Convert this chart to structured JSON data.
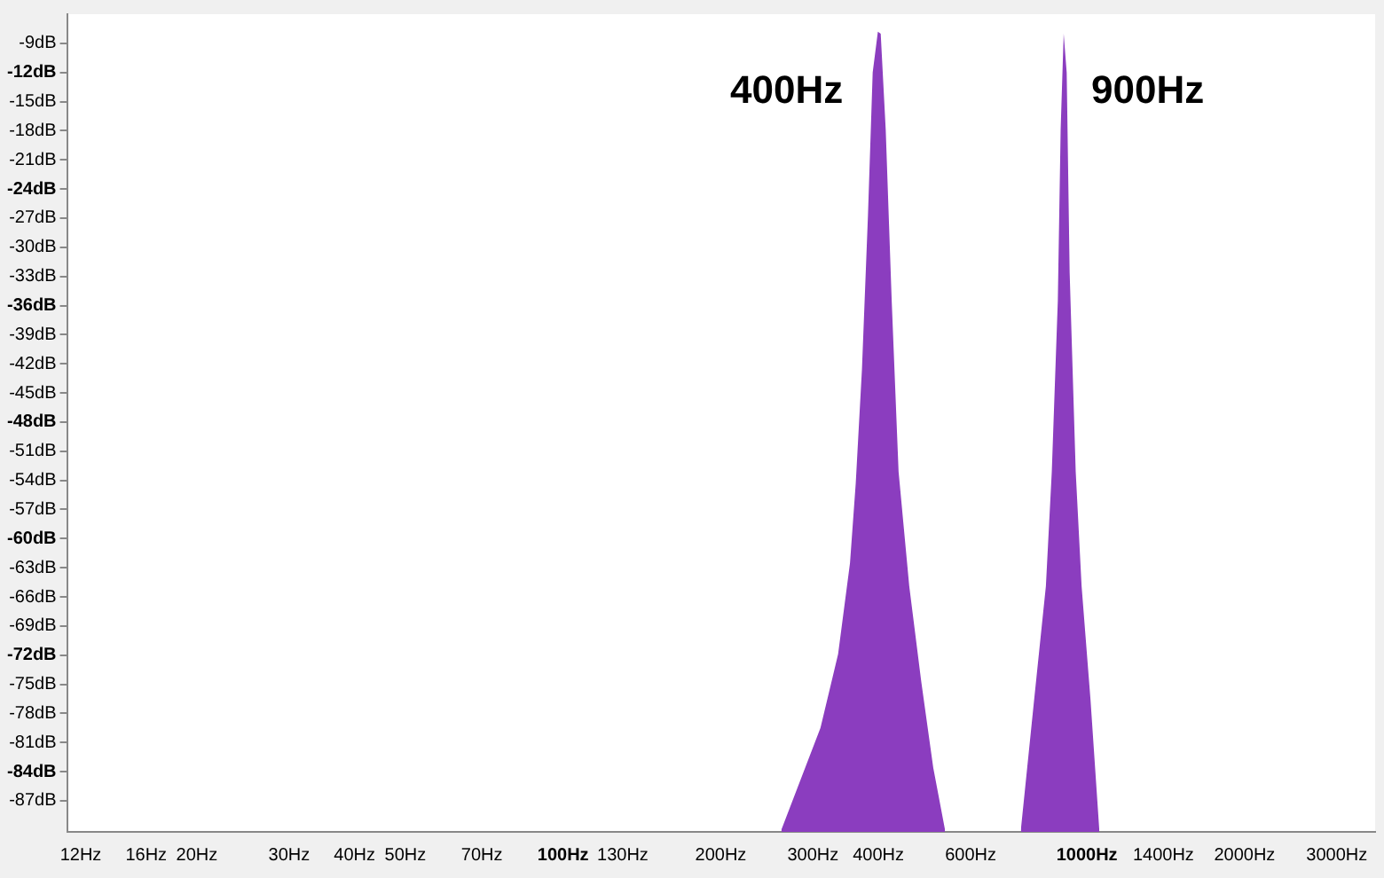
{
  "chart_data": {
    "type": "area",
    "log": "x",
    "x": [
      261,
      310,
      335,
      353,
      362,
      372,
      382,
      390,
      399,
      404,
      413,
      424,
      437,
      458,
      483,
      509,
      536,
      600,
      748,
      793,
      835,
      857,
      880,
      891,
      903,
      915,
      927,
      952,
      977,
      1016,
      1056
    ],
    "series": [
      {
        "color": "#8b3dbf",
        "values": [
          -90,
          -79.5,
          -71.9,
          -62.5,
          -54.3,
          -42.6,
          -26.7,
          -12,
          -7.8,
          -8,
          -17.9,
          -35.5,
          -53.1,
          -64.9,
          -74.8,
          -83.6,
          -90,
          null,
          -90,
          -76.6,
          -64.9,
          -53.1,
          -35.5,
          -17.9,
          -8,
          -12,
          -32.6,
          -53.1,
          -64.9,
          -76.6,
          -90
        ]
      }
    ],
    "xlim": [
      11.3,
      3550
    ],
    "ylim": [
      -90.2,
      -6
    ],
    "xticks": [
      {
        "value": 12,
        "label": "12Hz"
      },
      {
        "value": 16,
        "label": "16Hz"
      },
      {
        "value": 20,
        "label": "20Hz"
      },
      {
        "value": 30,
        "label": "30Hz"
      },
      {
        "value": 40,
        "label": "40Hz"
      },
      {
        "value": 50,
        "label": "50Hz"
      },
      {
        "value": 70,
        "label": "70Hz"
      },
      {
        "value": 100,
        "label": "100Hz"
      },
      {
        "value": 130,
        "label": "130Hz"
      },
      {
        "value": 200,
        "label": "200Hz"
      },
      {
        "value": 300,
        "label": "300Hz"
      },
      {
        "value": 400,
        "label": "400Hz"
      },
      {
        "value": 600,
        "label": "600Hz"
      },
      {
        "value": 1000,
        "label": "1000Hz"
      },
      {
        "value": 1400,
        "label": "1400Hz"
      },
      {
        "value": 2000,
        "label": "2000Hz"
      },
      {
        "value": 3000,
        "label": "3000Hz"
      }
    ],
    "yticks": [
      {
        "value": -9,
        "label": "-9dB"
      },
      {
        "value": -12,
        "label": "-12dB"
      },
      {
        "value": -15,
        "label": "-15dB"
      },
      {
        "value": -18,
        "label": "-18dB"
      },
      {
        "value": -21,
        "label": "-21dB"
      },
      {
        "value": -24,
        "label": "-24dB"
      },
      {
        "value": -27,
        "label": "-27dB"
      },
      {
        "value": -30,
        "label": "-30dB"
      },
      {
        "value": -33,
        "label": "-33dB"
      },
      {
        "value": -36,
        "label": "-36dB"
      },
      {
        "value": -39,
        "label": "-39dB"
      },
      {
        "value": -42,
        "label": "-42dB"
      },
      {
        "value": -45,
        "label": "-45dB"
      },
      {
        "value": -48,
        "label": "-48dB"
      },
      {
        "value": -51,
        "label": "-51dB"
      },
      {
        "value": -54,
        "label": "-54dB"
      },
      {
        "value": -57,
        "label": "-57dB"
      },
      {
        "value": -60,
        "label": "-60dB"
      },
      {
        "value": -63,
        "label": "-63dB"
      },
      {
        "value": -66,
        "label": "-66dB"
      },
      {
        "value": -69,
        "label": "-69dB"
      },
      {
        "value": -72,
        "label": "-72dB"
      },
      {
        "value": -75,
        "label": "-75dB"
      },
      {
        "value": -78,
        "label": "-78dB"
      },
      {
        "value": -81,
        "label": "-81dB"
      },
      {
        "value": -84,
        "label": "-84dB"
      },
      {
        "value": -87,
        "label": "-87dB"
      }
    ],
    "annotations": [
      {
        "text": "400Hz",
        "x": 400,
        "y": -14
      },
      {
        "text": "900Hz",
        "x": 900,
        "y": -14
      }
    ]
  }
}
